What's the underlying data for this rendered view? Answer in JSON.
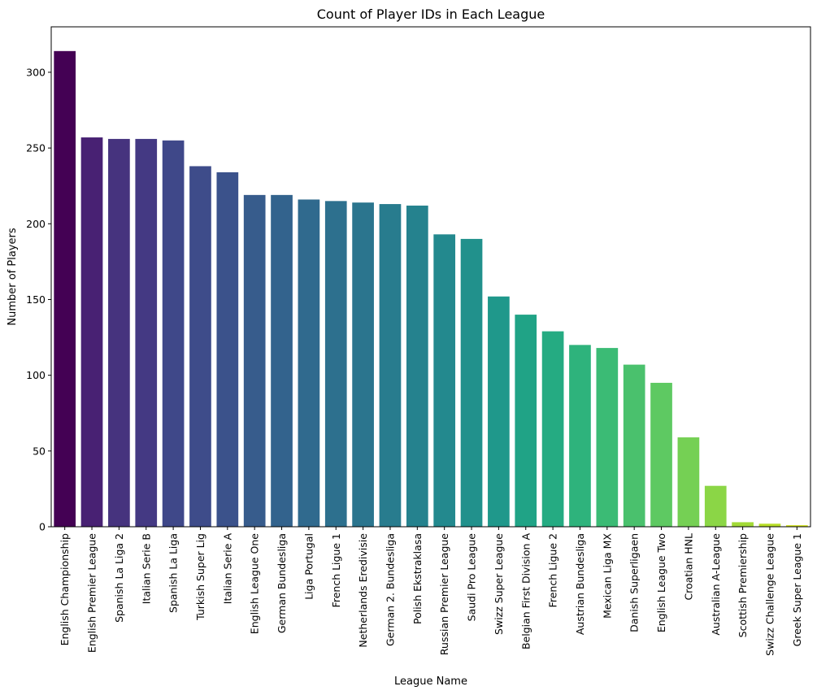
{
  "chart_data": {
    "type": "bar",
    "title": "Count of Player IDs in Each League",
    "xlabel": "League Name",
    "ylabel": "Number of Players",
    "ylim": [
      0,
      330
    ],
    "yticks": [
      0,
      50,
      100,
      150,
      200,
      250,
      300
    ],
    "grid": false,
    "legend": "none",
    "palette": "viridis",
    "categories": [
      "English Championship",
      "English Premier League",
      "Spanish La Liga 2",
      "Italian Serie B",
      "Spanish La Liga",
      "Turkish Super Lig",
      "Italian Serie A",
      "English League One",
      "German Bundesliga",
      "Liga Portugal",
      "French Ligue 1",
      "Netherlands Eredivisie",
      "German 2. Bundesliga",
      "Polish Ekstraklasa",
      "Russian Premier League",
      "Saudi Pro League",
      "Swizz Super League",
      "Belgian First Division A",
      "French Ligue 2",
      "Austrian Bundesliga",
      "Mexican Liga MX",
      "Danish Superligaen",
      "English League Two",
      "Croatian HNL",
      "Australian A-League",
      "Scottish Premiership",
      "Swizz Challenge League",
      "Greek Super League 1"
    ],
    "values": [
      314,
      257,
      256,
      256,
      255,
      238,
      234,
      219,
      219,
      216,
      215,
      214,
      213,
      212,
      193,
      190,
      152,
      140,
      129,
      120,
      118,
      107,
      95,
      59,
      27,
      3,
      2,
      1
    ],
    "colors": [
      "#440154",
      "#482173",
      "#46337e",
      "#443983",
      "#3f4889",
      "#3e4c8a",
      "#3b528b",
      "#375c8c",
      "#33638d",
      "#306a8e",
      "#2d708e",
      "#2b758e",
      "#287c8e",
      "#25828e",
      "#23898e",
      "#21918c",
      "#1f988b",
      "#20a386",
      "#25ab82",
      "#2eb37c",
      "#3bbb75",
      "#4ac16d",
      "#5ec962",
      "#75d054",
      "#8bd646",
      "#a2da37",
      "#b8de29",
      "#d2e21b"
    ]
  }
}
